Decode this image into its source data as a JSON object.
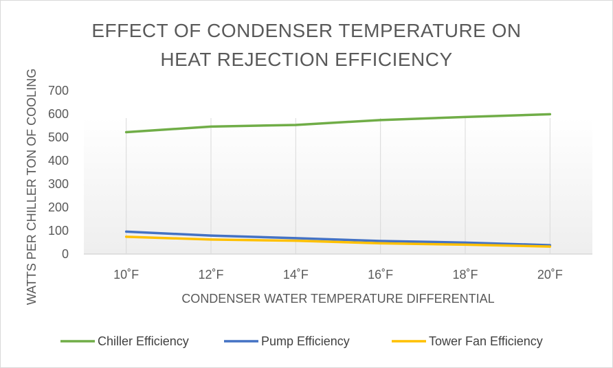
{
  "chart_data": {
    "type": "line",
    "title_line1": "EFFECT OF CONDENSER TEMPERATURE ON",
    "title_line2": "HEAT REJECTION EFFICIENCY",
    "xlabel": "CONDENSER WATER TEMPERATURE DIFFERENTIAL",
    "ylabel": "WATTS PER CHILLER TON OF COOLING",
    "categories": [
      "10˚F",
      "12˚F",
      "14˚F",
      "16˚F",
      "18˚F",
      "20˚F"
    ],
    "ylim": [
      0,
      700
    ],
    "yticks": [
      "0",
      "100",
      "200",
      "300",
      "400",
      "500",
      "600",
      "700"
    ],
    "grid": "vertical",
    "legend_position": "bottom",
    "series": [
      {
        "name": "Chiller Efficiency",
        "color": "#70ad47",
        "values": [
          522,
          546,
          553,
          574,
          587,
          599
        ]
      },
      {
        "name": "Pump Efficiency",
        "color": "#4472c4",
        "values": [
          96,
          79,
          68,
          56,
          49,
          38
        ]
      },
      {
        "name": "Tower Fan Efficiency",
        "color": "#ffc000",
        "values": [
          74,
          62,
          57,
          46,
          40,
          32
        ]
      }
    ]
  }
}
